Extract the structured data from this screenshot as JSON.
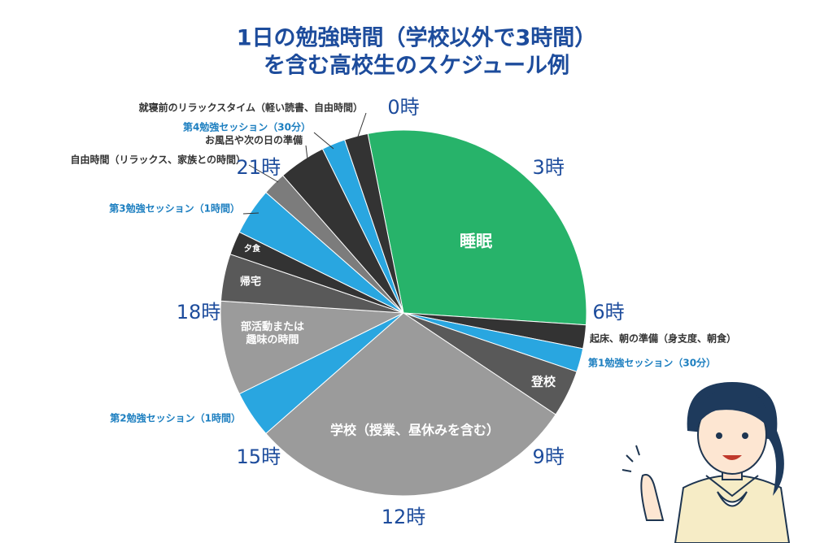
{
  "chart_data": {
    "type": "pie",
    "title": [
      "1日の勉強時間（学校以外で3時間）",
      "を含む高校生のスケジュール例"
    ],
    "startangle": -11.25,
    "categories": [
      "睡眠",
      "起床、朝の準備（身支度、朝食）",
      "第1勉強セッション（30分）",
      "登校",
      "学校（授業、昼休みを含む）",
      "第2勉強セッション（1時間）",
      "部活動または\n趣味の時間",
      "帰宅",
      "夕食",
      "第3勉強セッション（1時間）",
      "自由時間（リラックス、家族との時間）",
      "お風呂や次の日の準備",
      "第4勉強セッション（30分）",
      "就寝前のリラックスタイム（軽い読書、自由時間）"
    ],
    "values": [
      7,
      0.5,
      0.5,
      1,
      7,
      1,
      2,
      1,
      0.5,
      1,
      0.5,
      1,
      0.5,
      0.5
    ],
    "colors": [
      "#27b36a",
      "#333333",
      "#29a6e0",
      "#595959",
      "#9b9b9b",
      "#29a6e0",
      "#9b9b9b",
      "#595959",
      "#333333",
      "#29a6e0",
      "#7c7c7c",
      "#333333",
      "#29a6e0",
      "#333333"
    ],
    "hour_ticks": [
      {
        "value": 0,
        "label": "0時"
      },
      {
        "value": 3,
        "label": "3時"
      },
      {
        "value": 6,
        "label": "6時"
      },
      {
        "value": 9,
        "label": "9時"
      },
      {
        "value": 12,
        "label": "12時"
      },
      {
        "value": 15,
        "label": "15時"
      },
      {
        "value": 18,
        "label": "18時"
      },
      {
        "value": 21,
        "label": "21時"
      }
    ],
    "hours_per_turn": 24
  }
}
